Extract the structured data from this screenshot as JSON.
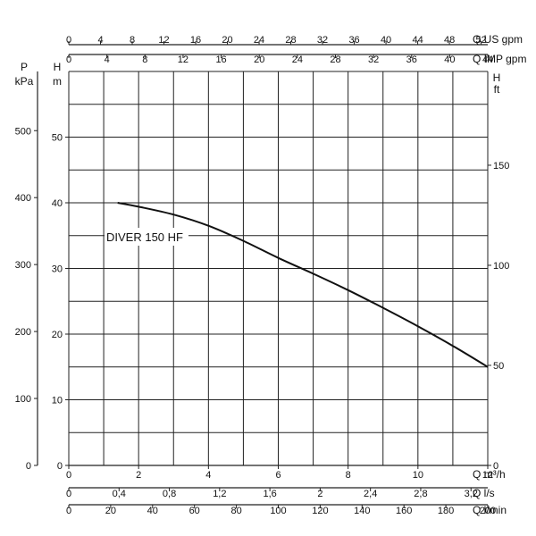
{
  "chart_data": {
    "type": "line",
    "title": "",
    "series": [
      {
        "name": "DIVER 150 HF",
        "x": [
          1.4,
          2,
          3,
          4,
          5,
          6,
          7,
          8,
          9,
          10,
          11,
          12
        ],
        "y": [
          40,
          39.4,
          38.2,
          36.5,
          34.2,
          31.6,
          29.2,
          26.7,
          24.0,
          21.2,
          18.2,
          15.0
        ]
      }
    ],
    "series_label": "DIVER 150 HF",
    "xlim": [
      0,
      12
    ],
    "ylim": [
      0,
      60
    ],
    "grid": true,
    "axes": {
      "bottom_m3h": {
        "label": "Q m³/h",
        "ticks": [
          {
            "v": 0,
            "label": "0"
          },
          {
            "v": 2,
            "label": "2"
          },
          {
            "v": 4,
            "label": "4"
          },
          {
            "v": 6,
            "label": "6"
          },
          {
            "v": 8,
            "label": "8"
          },
          {
            "v": 10,
            "label": "10"
          },
          {
            "v": 12,
            "label": "12"
          }
        ]
      },
      "bottom_ls": {
        "label": "Q l/s",
        "ticks": [
          {
            "v": 0,
            "label": "0"
          },
          {
            "v": 0.4,
            "label": "0,4"
          },
          {
            "v": 0.8,
            "label": "0,8"
          },
          {
            "v": 1.2,
            "label": "1,2"
          },
          {
            "v": 1.6,
            "label": "1,6"
          },
          {
            "v": 2,
            "label": "2"
          },
          {
            "v": 2.4,
            "label": "2,4"
          },
          {
            "v": 2.8,
            "label": "2,8"
          },
          {
            "v": 3.2,
            "label": "3,2"
          }
        ]
      },
      "bottom_lmin": {
        "label": "Q l/min",
        "ticks": [
          {
            "v": 0,
            "label": "0"
          },
          {
            "v": 20,
            "label": "20"
          },
          {
            "v": 40,
            "label": "40"
          },
          {
            "v": 60,
            "label": "60"
          },
          {
            "v": 80,
            "label": "80"
          },
          {
            "v": 100,
            "label": "100"
          },
          {
            "v": 120,
            "label": "120"
          },
          {
            "v": 140,
            "label": "140"
          },
          {
            "v": 160,
            "label": "160"
          },
          {
            "v": 180,
            "label": "180"
          },
          {
            "v": 200,
            "label": "200"
          }
        ]
      },
      "top_usgpm": {
        "label": "Q US gpm",
        "ticks": [
          {
            "v": 0,
            "label": "0"
          },
          {
            "v": 4,
            "label": "4"
          },
          {
            "v": 8,
            "label": "8"
          },
          {
            "v": 12,
            "label": "12"
          },
          {
            "v": 16,
            "label": "16"
          },
          {
            "v": 20,
            "label": "20"
          },
          {
            "v": 24,
            "label": "24"
          },
          {
            "v": 28,
            "label": "28"
          },
          {
            "v": 32,
            "label": "32"
          },
          {
            "v": 36,
            "label": "36"
          },
          {
            "v": 40,
            "label": "40"
          },
          {
            "v": 44,
            "label": "44"
          },
          {
            "v": 48,
            "label": "48"
          },
          {
            "v": 52,
            "label": "52"
          }
        ]
      },
      "top_impgpm": {
        "label": "Q IMP gpm",
        "ticks": [
          {
            "v": 0,
            "label": "0"
          },
          {
            "v": 4,
            "label": "4"
          },
          {
            "v": 8,
            "label": "8"
          },
          {
            "v": 12,
            "label": "12"
          },
          {
            "v": 16,
            "label": "16"
          },
          {
            "v": 20,
            "label": "20"
          },
          {
            "v": 24,
            "label": "24"
          },
          {
            "v": 28,
            "label": "28"
          },
          {
            "v": 32,
            "label": "32"
          },
          {
            "v": 36,
            "label": "36"
          },
          {
            "v": 40,
            "label": "40"
          },
          {
            "v": 44,
            "label": "44"
          }
        ]
      },
      "left_kpa": {
        "label_top": "P",
        "label_unit": "kPa",
        "ticks": [
          {
            "v": 0,
            "label": "0"
          },
          {
            "v": 100,
            "label": "100"
          },
          {
            "v": 200,
            "label": "200"
          },
          {
            "v": 300,
            "label": "300"
          },
          {
            "v": 400,
            "label": "400"
          },
          {
            "v": 500,
            "label": "500"
          }
        ]
      },
      "left_m": {
        "label_top": "H",
        "label_unit": "m",
        "ticks": [
          {
            "v": 0,
            "label": "0"
          },
          {
            "v": 10,
            "label": "10"
          },
          {
            "v": 20,
            "label": "20"
          },
          {
            "v": 30,
            "label": "30"
          },
          {
            "v": 40,
            "label": "40"
          },
          {
            "v": 50,
            "label": "50"
          }
        ]
      },
      "right_ft": {
        "label_top": "H",
        "label_unit": "ft",
        "ticks": [
          {
            "v": 0,
            "label": "0"
          },
          {
            "v": 50,
            "label": "50"
          },
          {
            "v": 100,
            "label": "100"
          },
          {
            "v": 150,
            "label": "150"
          }
        ]
      }
    }
  }
}
